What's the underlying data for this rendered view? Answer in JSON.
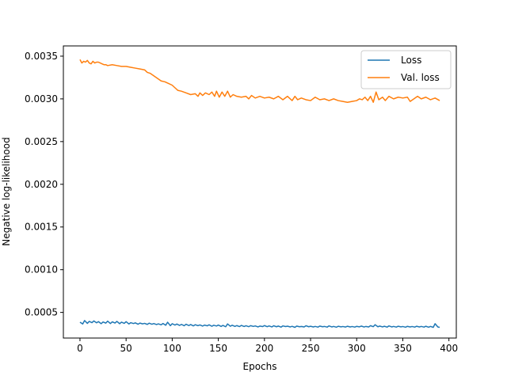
{
  "chart_data": {
    "type": "line",
    "xlabel": "Epochs",
    "ylabel": "Negative log-likelihood",
    "xlim": [
      -18,
      408
    ],
    "ylim": [
      0.0002,
      0.00362
    ],
    "xticks": [
      0,
      50,
      100,
      150,
      200,
      250,
      300,
      350,
      400
    ],
    "yticks": [
      0.0005,
      0.001,
      0.0015,
      0.002,
      0.0025,
      0.003,
      0.0035
    ],
    "ytick_labels": [
      "0.0005",
      "0.0010",
      "0.0015",
      "0.0020",
      "0.0025",
      "0.0030",
      "0.0035"
    ],
    "grid": false,
    "legend_position": "top-right",
    "series": [
      {
        "name": "Loss",
        "color": "#1f77b4",
        "x": [
          0,
          3,
          5,
          8,
          10,
          13,
          15,
          18,
          20,
          23,
          25,
          28,
          30,
          33,
          35,
          38,
          40,
          43,
          45,
          48,
          50,
          53,
          55,
          58,
          60,
          63,
          65,
          68,
          70,
          73,
          75,
          78,
          80,
          83,
          85,
          88,
          90,
          93,
          95,
          98,
          100,
          103,
          105,
          108,
          110,
          113,
          115,
          118,
          120,
          123,
          125,
          128,
          130,
          133,
          135,
          138,
          140,
          143,
          145,
          148,
          150,
          153,
          155,
          158,
          160,
          163,
          165,
          168,
          170,
          173,
          175,
          178,
          180,
          183,
          185,
          188,
          190,
          193,
          195,
          198,
          200,
          203,
          205,
          208,
          210,
          213,
          215,
          218,
          220,
          223,
          225,
          228,
          230,
          233,
          235,
          238,
          240,
          243,
          245,
          248,
          250,
          253,
          255,
          258,
          260,
          263,
          265,
          268,
          270,
          273,
          275,
          278,
          280,
          283,
          285,
          288,
          290,
          293,
          295,
          298,
          300,
          303,
          305,
          308,
          310,
          313,
          315,
          318,
          320,
          323,
          325,
          328,
          330,
          333,
          335,
          338,
          340,
          343,
          345,
          348,
          350,
          353,
          355,
          358,
          360,
          363,
          365,
          368,
          370,
          373,
          375,
          378,
          380,
          383,
          385,
          388,
          390
        ],
        "values": [
          0.000385,
          0.000365,
          0.000405,
          0.000372,
          0.000395,
          0.00038,
          0.0004,
          0.000378,
          0.000392,
          0.000368,
          0.000388,
          0.000375,
          0.000398,
          0.00037,
          0.00039,
          0.000376,
          0.000395,
          0.000368,
          0.000386,
          0.000372,
          0.000392,
          0.000365,
          0.00038,
          0.00037,
          0.000378,
          0.000362,
          0.000375,
          0.000366,
          0.000372,
          0.00036,
          0.000374,
          0.000362,
          0.00037,
          0.000358,
          0.000366,
          0.000355,
          0.00037,
          0.00035,
          0.000385,
          0.000345,
          0.000368,
          0.000352,
          0.000364,
          0.000348,
          0.00036,
          0.000344,
          0.000362,
          0.000346,
          0.000358,
          0.000342,
          0.000356,
          0.000345,
          0.000354,
          0.00034,
          0.000352,
          0.000343,
          0.000355,
          0.000338,
          0.00035,
          0.000341,
          0.000352,
          0.000336,
          0.000348,
          0.000332,
          0.000365,
          0.000338,
          0.00035,
          0.000336,
          0.000346,
          0.000334,
          0.000348,
          0.000335,
          0.000344,
          0.000333,
          0.000345,
          0.000336,
          0.000342,
          0.00033,
          0.00034,
          0.000334,
          0.000346,
          0.000333,
          0.000342,
          0.00033,
          0.000344,
          0.000332,
          0.00034,
          0.000328,
          0.000342,
          0.000334,
          0.000339,
          0.00033,
          0.000337,
          0.000325,
          0.00034,
          0.000332,
          0.000336,
          0.00033,
          0.000344,
          0.000332,
          0.000338,
          0.00033,
          0.000336,
          0.000328,
          0.00034,
          0.000332,
          0.000336,
          0.000328,
          0.000342,
          0.00033,
          0.000336,
          0.000327,
          0.000338,
          0.000331,
          0.000335,
          0.000329,
          0.000338,
          0.00033,
          0.000335,
          0.000328,
          0.000337,
          0.000331,
          0.00034,
          0.000329,
          0.000336,
          0.00033,
          0.000345,
          0.000333,
          0.000356,
          0.000332,
          0.00034,
          0.00033,
          0.000338,
          0.000328,
          0.000342,
          0.00033,
          0.000336,
          0.000328,
          0.000338,
          0.000331,
          0.000335,
          0.000327,
          0.000337,
          0.00033,
          0.000335,
          0.000328,
          0.000338,
          0.00033,
          0.000336,
          0.000328,
          0.000338,
          0.000327,
          0.000336,
          0.000325,
          0.000368,
          0.00033,
          0.000325
        ]
      },
      {
        "name": "Val. loss",
        "color": "#ff7f0e",
        "x": [
          0,
          2,
          4,
          6,
          8,
          10,
          12,
          14,
          16,
          18,
          20,
          22,
          24,
          26,
          28,
          30,
          35,
          40,
          45,
          50,
          55,
          60,
          65,
          70,
          73,
          76,
          80,
          84,
          88,
          92,
          96,
          100,
          103,
          106,
          110,
          115,
          120,
          125,
          128,
          130,
          133,
          136,
          140,
          143,
          146,
          148,
          151,
          154,
          157,
          160,
          163,
          166,
          170,
          175,
          180,
          183,
          186,
          190,
          195,
          200,
          205,
          210,
          215,
          220,
          225,
          230,
          233,
          236,
          240,
          245,
          250,
          255,
          260,
          265,
          270,
          275,
          280,
          285,
          290,
          295,
          300,
          303,
          306,
          309,
          312,
          315,
          318,
          321,
          324,
          328,
          331,
          335,
          340,
          345,
          350,
          355,
          358,
          362,
          366,
          370,
          375,
          380,
          385,
          390
        ],
        "values": [
          0.00346,
          0.00342,
          0.00344,
          0.00343,
          0.00345,
          0.00342,
          0.00341,
          0.00344,
          0.00342,
          0.00343,
          0.00343,
          0.00342,
          0.00341,
          0.0034,
          0.0034,
          0.00339,
          0.0034,
          0.00339,
          0.00338,
          0.00338,
          0.00337,
          0.00336,
          0.00335,
          0.00334,
          0.00331,
          0.0033,
          0.00327,
          0.00324,
          0.00321,
          0.0032,
          0.00318,
          0.00316,
          0.00313,
          0.0031,
          0.00309,
          0.00307,
          0.00305,
          0.00306,
          0.00303,
          0.00307,
          0.00304,
          0.00307,
          0.00305,
          0.00308,
          0.00303,
          0.00309,
          0.00302,
          0.00308,
          0.00303,
          0.00309,
          0.00302,
          0.00305,
          0.00303,
          0.00302,
          0.00303,
          0.003,
          0.00304,
          0.00301,
          0.00303,
          0.00301,
          0.00302,
          0.003,
          0.00303,
          0.00299,
          0.00303,
          0.00298,
          0.00303,
          0.00299,
          0.00301,
          0.00299,
          0.00298,
          0.00302,
          0.00299,
          0.003,
          0.00298,
          0.003,
          0.00298,
          0.00297,
          0.00296,
          0.00297,
          0.00298,
          0.003,
          0.00299,
          0.00302,
          0.00298,
          0.00303,
          0.00296,
          0.00308,
          0.00299,
          0.00302,
          0.00298,
          0.00303,
          0.003,
          0.00302,
          0.00301,
          0.00302,
          0.00297,
          0.003,
          0.00303,
          0.003,
          0.00302,
          0.00299,
          0.00301,
          0.00298
        ]
      }
    ]
  }
}
